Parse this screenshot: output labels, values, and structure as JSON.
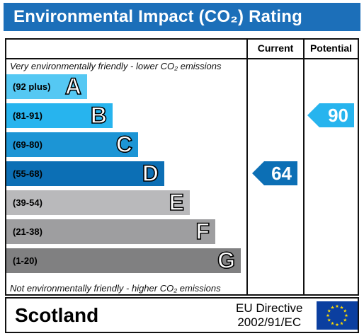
{
  "title": "Environmental Impact (CO₂) Rating",
  "columns": {
    "current": "Current",
    "potential": "Potential"
  },
  "top_note": "Very environmentally friendly - lower CO₂ emissions",
  "bottom_note": "Not environmentally friendly - higher CO₂ emissions",
  "chart_data": {
    "type": "bar",
    "categories": [
      "A",
      "B",
      "C",
      "D",
      "E",
      "F",
      "G"
    ],
    "ranges": [
      "(92 plus)",
      "(81-91)",
      "(69-80)",
      "(55-68)",
      "(39-54)",
      "(21-38)",
      "(1-20)"
    ],
    "colors": [
      "#55c8f3",
      "#27b4ee",
      "#1c95d5",
      "#0c6fb5",
      "#b9b9bb",
      "#9e9ea0",
      "#808081"
    ],
    "current": {
      "value": 64,
      "band": "D"
    },
    "potential": {
      "value": 90,
      "band": "B"
    }
  },
  "footer": {
    "country": "Scotland",
    "directive_line1": "EU Directive",
    "directive_line2": "2002/91/EC"
  },
  "flag_icon": "eu-flag-icon"
}
